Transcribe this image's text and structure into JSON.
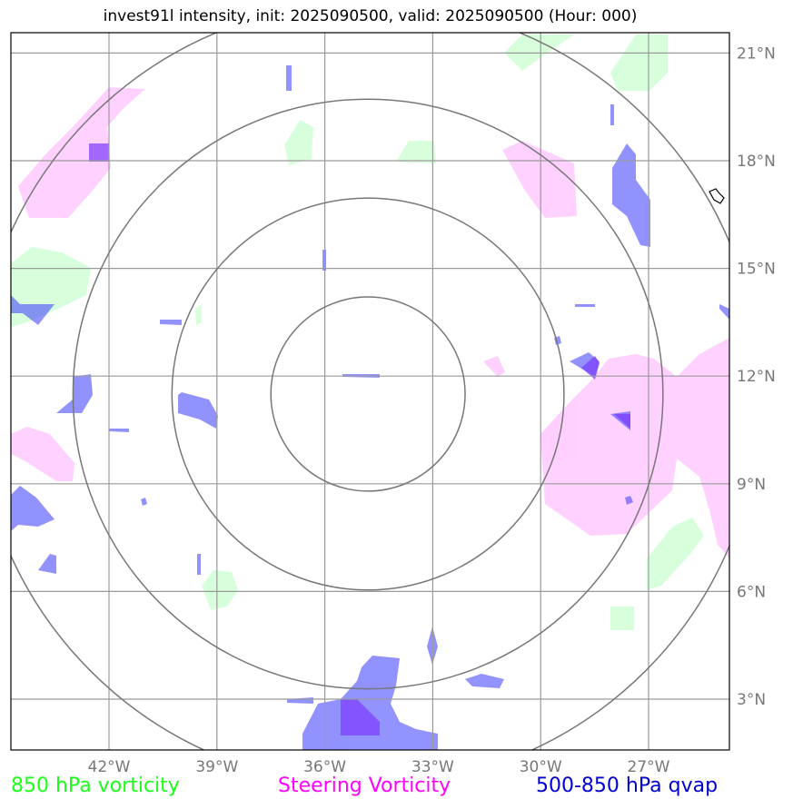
{
  "title": "invest91l intensity, init: 2025090500, valid: 2025090500 (Hour: 000)",
  "colors": {
    "vort850": "#7dff8a",
    "steering": "#ff66ff",
    "qvap": "#3a3aff",
    "overlap": "#7a3aff"
  },
  "legend": [
    {
      "label": "850 hPa vorticity",
      "color": "#1aff1a"
    },
    {
      "label": "Steering Vorticity",
      "color": "#ff00ff"
    },
    {
      "label": "500-850 hPa qvap",
      "color": "#0000d0"
    }
  ],
  "map": {
    "lon_ticks": [
      {
        "value": -42,
        "label": "42°W"
      },
      {
        "value": -39,
        "label": "39°W"
      },
      {
        "value": -36,
        "label": "36°W"
      },
      {
        "value": -33,
        "label": "33°W"
      },
      {
        "value": -30,
        "label": "30°W"
      },
      {
        "value": -27,
        "label": "27°W"
      }
    ],
    "lat_ticks": [
      {
        "value": 3,
        "label": "3°N"
      },
      {
        "value": 6,
        "label": "6°N"
      },
      {
        "value": 9,
        "label": "9°N"
      },
      {
        "value": 12,
        "label": "12°N"
      },
      {
        "value": 15,
        "label": "15°N"
      },
      {
        "value": 18,
        "label": "18°N"
      },
      {
        "value": 21,
        "label": "21°N"
      }
    ],
    "center": {
      "lon": -34.8,
      "lat": 11.5
    },
    "range_rings_deg": [
      2.7,
      5.45,
      8.2,
      10.9
    ]
  }
}
